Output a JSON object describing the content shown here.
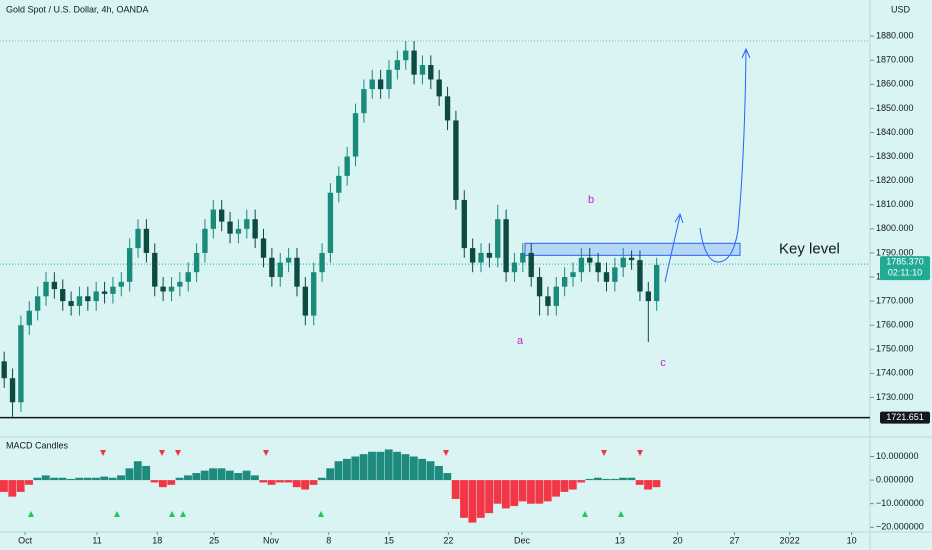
{
  "chart_data": {
    "type": "candlestick",
    "title": "Gold Spot / U.S. Dollar, 4h, OANDA",
    "currency": "USD",
    "up_color": "#1a8a7c",
    "down_color": "#0c4a43",
    "open": [
      1745,
      1738,
      1728,
      1760,
      1766,
      1772,
      1778,
      1775,
      1770,
      1768,
      1772,
      1770,
      1774,
      1773,
      1776,
      1778,
      1792,
      1800,
      1790,
      1776,
      1774,
      1776,
      1778,
      1782,
      1790,
      1800,
      1808,
      1803,
      1798,
      1800,
      1804,
      1796,
      1788,
      1780,
      1786,
      1788,
      1776,
      1764,
      1782,
      1790,
      1815,
      1822,
      1830,
      1848,
      1858,
      1862,
      1858,
      1866,
      1870,
      1874,
      1864,
      1868,
      1862,
      1855,
      1845,
      1812,
      1792,
      1786,
      1790,
      1788,
      1804,
      1782,
      1786,
      1790,
      1780,
      1772,
      1768,
      1776,
      1780,
      1782,
      1788,
      1786,
      1782,
      1778,
      1784,
      1788,
      1787,
      1774,
      1770
    ],
    "high": [
      1749,
      1742,
      1764,
      1770,
      1776,
      1782,
      1782,
      1779,
      1774,
      1776,
      1776,
      1778,
      1778,
      1780,
      1782,
      1796,
      1804,
      1804,
      1794,
      1780,
      1780,
      1782,
      1786,
      1794,
      1804,
      1812,
      1812,
      1807,
      1804,
      1808,
      1808,
      1800,
      1792,
      1790,
      1792,
      1792,
      1780,
      1786,
      1794,
      1819,
      1826,
      1834,
      1852,
      1862,
      1866,
      1866,
      1870,
      1874,
      1878,
      1878,
      1872,
      1872,
      1866,
      1859,
      1849,
      1816,
      1796,
      1794,
      1794,
      1810,
      1808,
      1790,
      1794,
      1794,
      1784,
      1776,
      1780,
      1784,
      1786,
      1792,
      1792,
      1790,
      1786,
      1788,
      1792,
      1791,
      1791,
      1778,
      1788
    ],
    "low": [
      1734,
      1722,
      1724,
      1756,
      1762,
      1768,
      1771,
      1766,
      1764,
      1764,
      1766,
      1766,
      1769,
      1769,
      1772,
      1774,
      1788,
      1786,
      1772,
      1770,
      1770,
      1772,
      1774,
      1778,
      1786,
      1796,
      1799,
      1794,
      1794,
      1796,
      1792,
      1784,
      1776,
      1776,
      1782,
      1772,
      1760,
      1760,
      1778,
      1786,
      1811,
      1818,
      1826,
      1844,
      1854,
      1854,
      1854,
      1862,
      1866,
      1860,
      1860,
      1858,
      1851,
      1841,
      1808,
      1788,
      1782,
      1782,
      1784,
      1784,
      1778,
      1778,
      1782,
      1776,
      1764,
      1764,
      1764,
      1772,
      1776,
      1778,
      1782,
      1778,
      1774,
      1774,
      1780,
      1783,
      1770,
      1753,
      1766
    ],
    "close": [
      1738,
      1728,
      1760,
      1766,
      1772,
      1778,
      1775,
      1770,
      1768,
      1772,
      1770,
      1774,
      1773,
      1776,
      1778,
      1792,
      1800,
      1790,
      1776,
      1774,
      1776,
      1778,
      1782,
      1790,
      1800,
      1808,
      1803,
      1798,
      1800,
      1804,
      1796,
      1788,
      1780,
      1786,
      1788,
      1776,
      1764,
      1782,
      1790,
      1815,
      1822,
      1830,
      1848,
      1858,
      1862,
      1858,
      1866,
      1870,
      1874,
      1864,
      1868,
      1862,
      1855,
      1845,
      1812,
      1792,
      1786,
      1790,
      1788,
      1804,
      1782,
      1786,
      1790,
      1780,
      1772,
      1768,
      1776,
      1780,
      1782,
      1788,
      1786,
      1782,
      1778,
      1784,
      1788,
      1787,
      1774,
      1770,
      1785
    ],
    "xlim": [
      0,
      104
    ],
    "xticks": [
      {
        "value": 3.0,
        "label": "Oct"
      },
      {
        "value": 11.6,
        "label": "11"
      },
      {
        "value": 18.8,
        "label": "18"
      },
      {
        "value": 25.6,
        "label": "25"
      },
      {
        "value": 32.4,
        "label": "Nov"
      },
      {
        "value": 39.3,
        "label": "8"
      },
      {
        "value": 46.5,
        "label": "15"
      },
      {
        "value": 53.6,
        "label": "22"
      },
      {
        "value": 62.4,
        "label": "Dec"
      },
      {
        "value": 74.1,
        "label": "13"
      },
      {
        "value": 81.0,
        "label": "20"
      },
      {
        "value": 87.8,
        "label": "27"
      },
      {
        "value": 94.4,
        "label": "2022"
      },
      {
        "value": 101.8,
        "label": "10"
      }
    ],
    "ylim": [
      1714,
      1895
    ],
    "yticks": [
      {
        "value": 1730,
        "label": "1730.000"
      },
      {
        "value": 1740,
        "label": "1740.000"
      },
      {
        "value": 1750,
        "label": "1750.000"
      },
      {
        "value": 1760,
        "label": "1760.000"
      },
      {
        "value": 1770,
        "label": "1770.000"
      },
      {
        "value": 1780,
        "label": "1780.000"
      },
      {
        "value": 1790,
        "label": "1790.000"
      },
      {
        "value": 1800,
        "label": "1800.000"
      },
      {
        "value": 1810,
        "label": "1810.000"
      },
      {
        "value": 1820,
        "label": "1820.000"
      },
      {
        "value": 1830,
        "label": "1830.000"
      },
      {
        "value": 1840,
        "label": "1840.000"
      },
      {
        "value": 1850,
        "label": "1850.000"
      },
      {
        "value": 1860,
        "label": "1860.000"
      },
      {
        "value": 1870,
        "label": "1870.000"
      },
      {
        "value": 1880,
        "label": "1880.000"
      }
    ],
    "grid": false,
    "high_line": 1878,
    "hline": 1721.651,
    "last_price": {
      "value": 1785.37,
      "label": "1785.370",
      "countdown": "02:11:10",
      "color": "#22ab94"
    },
    "zone": {
      "label": "Key level",
      "low": 1789,
      "high": 1794,
      "color": "#2962ff"
    },
    "wave_labels": [
      "a",
      "b",
      "c"
    ],
    "macd": {
      "title": "MACD Candles",
      "pos_color": "#1f8a7e",
      "neg_color": "#f23645",
      "values": [
        -5,
        -7,
        -5,
        -2,
        1,
        2,
        1,
        1,
        0.5,
        1,
        1,
        1,
        1.5,
        1,
        2,
        5,
        8,
        6,
        -1,
        -3,
        -2,
        1,
        2,
        3,
        4,
        5,
        5,
        4,
        3,
        4,
        2,
        -1,
        -2,
        -1,
        -1,
        -3,
        -4,
        -2,
        1,
        5,
        8,
        9,
        10,
        11,
        12,
        12,
        13,
        12,
        11,
        10,
        9,
        8,
        6,
        3,
        -8,
        -16,
        -18,
        -16,
        -14,
        -10,
        -12,
        -11,
        -9,
        -10,
        -10,
        -9,
        -7,
        -5,
        -4,
        -1,
        0.5,
        1,
        0.5,
        0.5,
        1,
        1,
        -2,
        -4,
        -3
      ],
      "ylim": [
        -22,
        17
      ],
      "yticks": [
        {
          "value": 10,
          "label": "10.000000"
        },
        {
          "value": 0,
          "label": "0.000000"
        },
        {
          "value": -10,
          "label": "−10.000000"
        },
        {
          "value": -20,
          "label": "−20.000000"
        }
      ]
    }
  }
}
